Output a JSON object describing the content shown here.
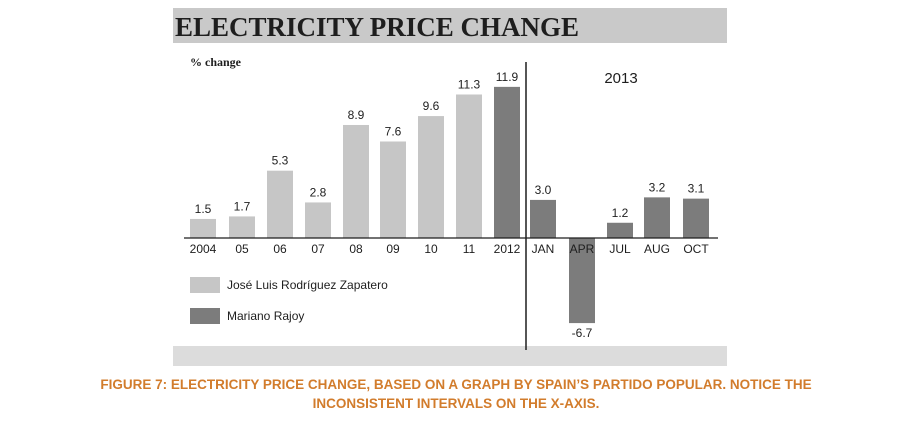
{
  "colors": {
    "header_bg": "#c9c9c9",
    "plot_bg": "#ffffff",
    "bottom_band": "#dcdcdc",
    "zapatero": "#c6c6c6",
    "rajoy": "#7c7c7c",
    "text": "#1e1e1e",
    "caption": "#d27c2c"
  },
  "caption": {
    "line1": "FIGURE 7: ELECTRICITY PRICE CHANGE, BASED ON A GRAPH BY SPAIN’S PARTIDO POPULAR. NOTICE THE",
    "line2": "INCONSISTENT INTERVALS ON THE X-AXIS."
  },
  "chart_data": {
    "type": "bar",
    "title": "ELECTRICITY PRICE CHANGE",
    "ylabel": "% change",
    "year_label": "2013",
    "categories": [
      "2004",
      "05",
      "06",
      "07",
      "08",
      "09",
      "10",
      "11",
      "2012",
      "JAN",
      "APR",
      "JUL",
      "AUG",
      "OCT"
    ],
    "values": [
      1.5,
      1.7,
      5.3,
      2.8,
      8.9,
      7.6,
      9.6,
      11.3,
      11.9,
      3.0,
      -6.7,
      1.2,
      3.2,
      3.1
    ],
    "value_labels": [
      "1.5",
      "1.7",
      "5.3",
      "2.8",
      "8.9",
      "7.6",
      "9.6",
      "11.3",
      "11.9",
      "3.0",
      "-6.7",
      "1.2",
      "3.2",
      "3.1"
    ],
    "series_of_bar": [
      "zapatero",
      "zapatero",
      "zapatero",
      "zapatero",
      "zapatero",
      "zapatero",
      "zapatero",
      "zapatero",
      "rajoy",
      "rajoy",
      "rajoy",
      "rajoy",
      "rajoy",
      "rajoy"
    ],
    "legend": [
      {
        "key": "zapatero",
        "name": "José Luis Rodríguez Zapatero"
      },
      {
        "key": "rajoy",
        "name": "Mariano Rajoy"
      }
    ],
    "legend_position": "bottom-left",
    "grid": false
  }
}
